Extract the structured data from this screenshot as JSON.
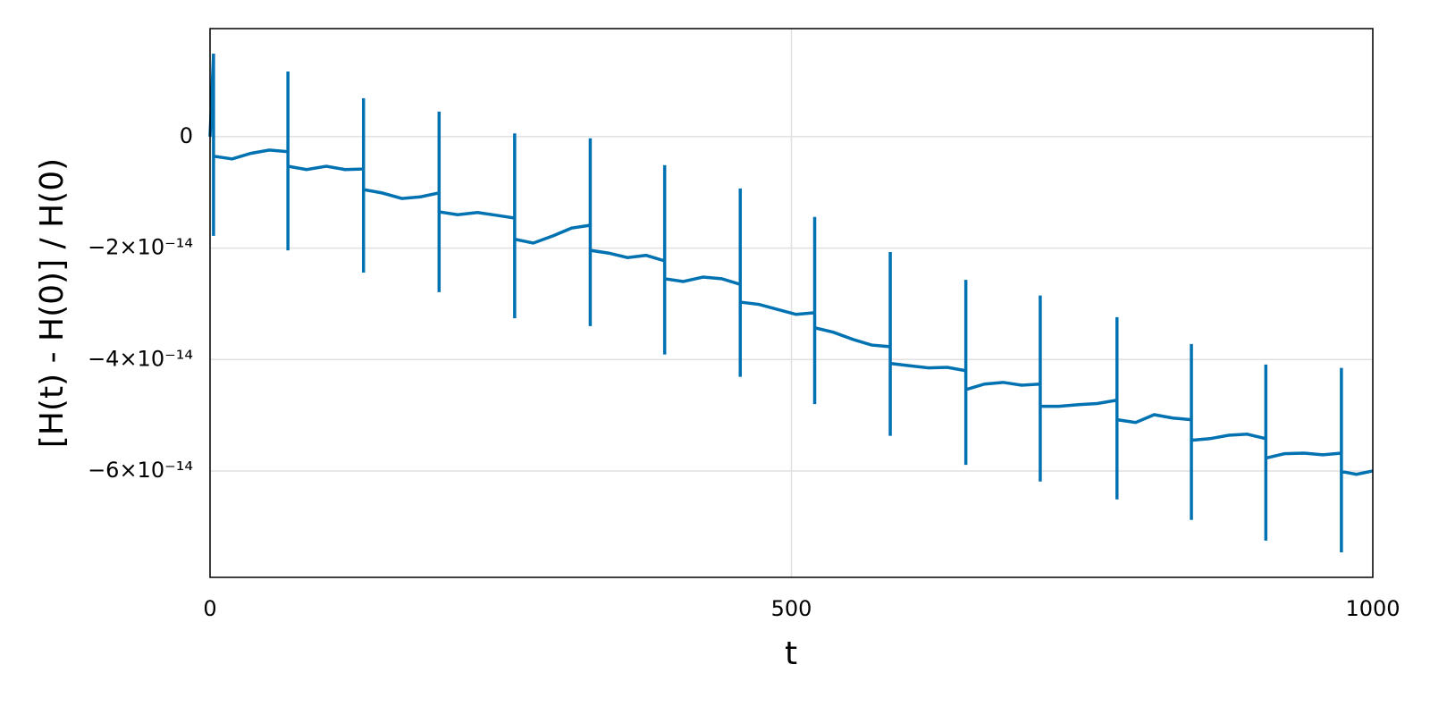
{
  "chart_data": {
    "type": "line",
    "xlabel": "t",
    "ylabel": "[H(t) - H(0)] / H(0)",
    "color": "#0072b2",
    "grid": true,
    "xlim": [
      0,
      1000
    ],
    "xticks": [
      0,
      500,
      1000
    ],
    "ylim": [
      -7.91e-14,
      1.94e-14
    ],
    "yticks": [
      0,
      {
        "value": -2e-14,
        "label": "−2×10⁻¹⁴"
      },
      {
        "value": -4e-14,
        "label": "−4×10⁻¹⁴"
      },
      {
        "value": -6e-14,
        "label": "−6×10⁻¹⁴"
      }
    ],
    "x": [
      0,
      3,
      3,
      3,
      19,
      35,
      51,
      67,
      67,
      67,
      67,
      83,
      100,
      116,
      132,
      132,
      132,
      132,
      148,
      165,
      181,
      197,
      197,
      197,
      197,
      213,
      230,
      246,
      262,
      262,
      262,
      262,
      278,
      295,
      311,
      327,
      327,
      327,
      327,
      343,
      359,
      375,
      391,
      391,
      391,
      391,
      407,
      424,
      440,
      456,
      456,
      456,
      456,
      472,
      488,
      504,
      520,
      520,
      520,
      520,
      536,
      553,
      569,
      585,
      585,
      585,
      585,
      601,
      618,
      634,
      650,
      650,
      650,
      650,
      666,
      682,
      698,
      714,
      714,
      714,
      714,
      730,
      747,
      763,
      780,
      780,
      780,
      780,
      796,
      812,
      828,
      844,
      844,
      844,
      844,
      860,
      876,
      892,
      908,
      908,
      908,
      908,
      924,
      941,
      957,
      973,
      973,
      973,
      973,
      986,
      1000
    ],
    "values": [
      0,
      1.49e-14,
      -1.78e-14,
      -3.5e-15,
      -4e-15,
      -3e-15,
      -2.4e-15,
      -2.7e-15,
      1.17e-14,
      -2.04e-14,
      -5.3e-15,
      -5.9e-15,
      -5.3e-15,
      -5.9e-15,
      -5.8e-15,
      6.9e-15,
      -2.44e-14,
      -9.5e-15,
      -1.01e-14,
      -1.11e-14,
      -1.08e-14,
      -1.01e-14,
      4.5e-15,
      -2.79e-14,
      -1.35e-14,
      -1.4e-14,
      -1.36e-14,
      -1.41e-14,
      -1.46e-14,
      6e-16,
      -3.26e-14,
      -1.84e-14,
      -1.91e-14,
      -1.78e-14,
      -1.64e-14,
      -1.59e-14,
      -3e-16,
      -3.4e-14,
      -2.04e-14,
      -2.09e-14,
      -2.17e-14,
      -2.13e-14,
      -2.23e-14,
      -5.1e-15,
      -3.91e-14,
      -2.55e-14,
      -2.6e-14,
      -2.52e-14,
      -2.55e-14,
      -2.65e-14,
      -9.3e-15,
      -4.31e-14,
      -2.97e-14,
      -3.01e-14,
      -3.1e-14,
      -3.19e-14,
      -3.16e-14,
      -1.44e-14,
      -4.8e-14,
      -3.43e-14,
      -3.51e-14,
      -3.64e-14,
      -3.74e-14,
      -3.77e-14,
      -2.07e-14,
      -5.37e-14,
      -4.07e-14,
      -4.11e-14,
      -4.15e-14,
      -4.14e-14,
      -4.2e-14,
      -2.57e-14,
      -5.89e-14,
      -4.54e-14,
      -4.44e-14,
      -4.41e-14,
      -4.46e-14,
      -4.44e-14,
      -2.85e-14,
      -6.19e-14,
      -4.84e-14,
      -4.84e-14,
      -4.81e-14,
      -4.79e-14,
      -4.73e-14,
      -3.24e-14,
      -6.51e-14,
      -5.08e-14,
      -5.13e-14,
      -4.99e-14,
      -5.05e-14,
      -5.08e-14,
      -3.72e-14,
      -6.88e-14,
      -5.45e-14,
      -5.42e-14,
      -5.36e-14,
      -5.34e-14,
      -5.42e-14,
      -4.09e-14,
      -7.25e-14,
      -5.77e-14,
      -5.69e-14,
      -5.68e-14,
      -5.71e-14,
      -5.68e-14,
      -4.15e-14,
      -7.46e-14,
      -6.01e-14,
      -6.06e-14,
      -6e-14
    ]
  }
}
